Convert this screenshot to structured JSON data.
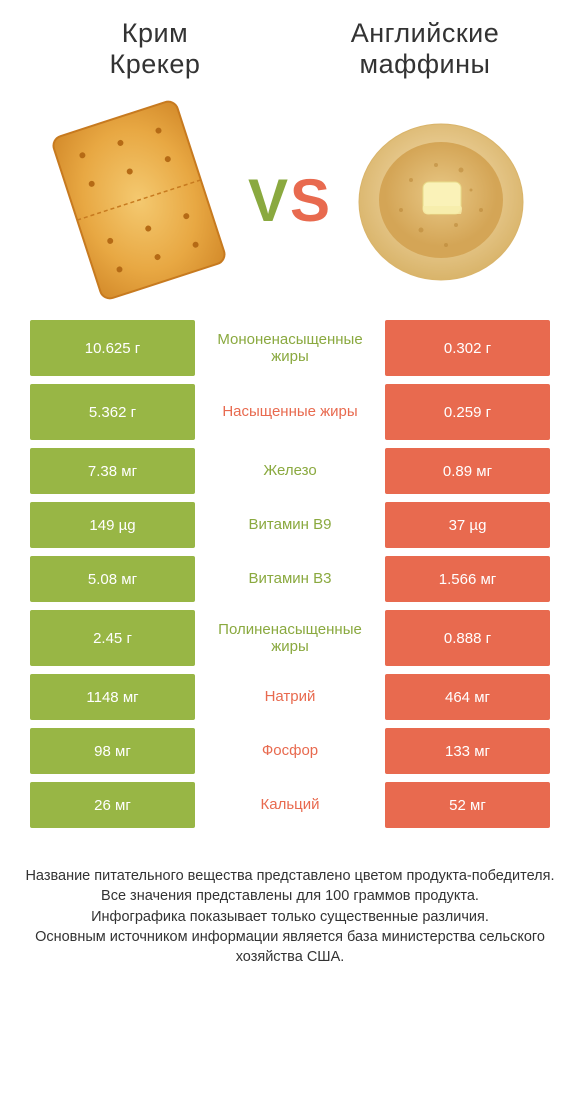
{
  "colors": {
    "green": "#98b645",
    "green_text": "#8aa93f",
    "orange": "#e86a4f",
    "background": "#ffffff",
    "text": "#333333"
  },
  "typography": {
    "title_fontsize": 27,
    "vs_fontsize": 60,
    "cell_fontsize": 15,
    "footer_fontsize": 14.5
  },
  "header": {
    "left_title_1": "Крим",
    "left_title_2": "Крекер",
    "right_title_1": "Английские",
    "right_title_2": "маффины"
  },
  "vs": {
    "v": "V",
    "s": "S"
  },
  "rows": [
    {
      "left": "10.625 г",
      "mid": "Мононенасыщенные жиры",
      "right": "0.302 г",
      "winner": "left",
      "tall": true
    },
    {
      "left": "5.362 г",
      "mid": "Насыщенные жиры",
      "right": "0.259 г",
      "winner": "right",
      "tall": true
    },
    {
      "left": "7.38 мг",
      "mid": "Железо",
      "right": "0.89 мг",
      "winner": "left",
      "tall": false
    },
    {
      "left": "149 µg",
      "mid": "Витамин B9",
      "right": "37 µg",
      "winner": "left",
      "tall": false
    },
    {
      "left": "5.08 мг",
      "mid": "Витамин B3",
      "right": "1.566 мг",
      "winner": "left",
      "tall": false
    },
    {
      "left": "2.45 г",
      "mid": "Полиненасыщенные жиры",
      "right": "0.888 г",
      "winner": "left",
      "tall": true
    },
    {
      "left": "1148 мг",
      "mid": "Натрий",
      "right": "464 мг",
      "winner": "right",
      "tall": false
    },
    {
      "left": "98 мг",
      "mid": "Фосфор",
      "right": "133 мг",
      "winner": "right",
      "tall": false
    },
    {
      "left": "26 мг",
      "mid": "Кальций",
      "right": "52 мг",
      "winner": "right",
      "tall": false
    }
  ],
  "footer": {
    "line1": "Название питательного вещества представлено цветом продукта-победителя.",
    "line2": "Все значения представлены для 100 граммов продукта.",
    "line3": "Инфографика показывает только существенные различия.",
    "line4": "Основным источником информации является база министерства сельского хозяйства США."
  }
}
